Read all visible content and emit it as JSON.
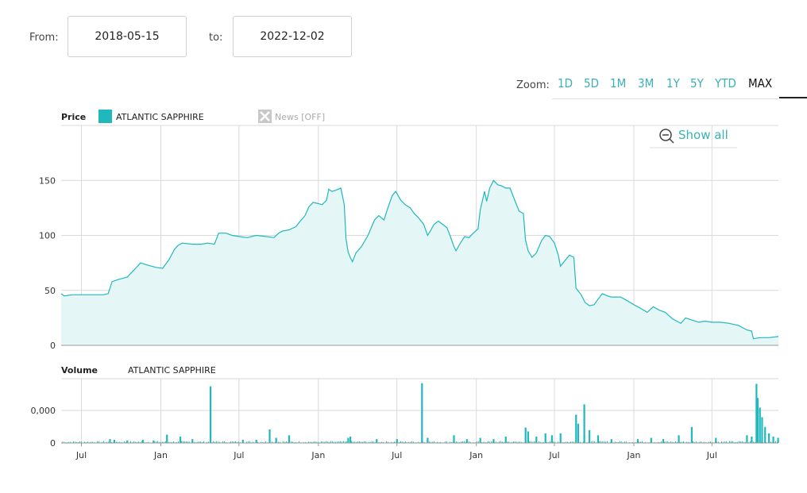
{
  "range": {
    "from_label": "From:",
    "from_value": "2018-05-15",
    "to_label": "to:",
    "to_value": "2022-12-02"
  },
  "zoom": {
    "label": "Zoom:",
    "options": [
      "1D",
      "5D",
      "1M",
      "3M",
      "1Y",
      "5Y",
      "YTD",
      "MAX"
    ],
    "selected": "MAX"
  },
  "price_panel": {
    "title": "Price",
    "series_name": "ATLANTIC SAPPHIRE",
    "news_toggle": "News [OFF]",
    "show_all": "Show all"
  },
  "volume_panel": {
    "title": "Volume",
    "series_name": "ATLANTIC SAPPHIRE"
  },
  "colors": {
    "series": "#20b8bc",
    "fill": "#e4f6f6",
    "grid": "#d9d9d9",
    "accent_text": "#3ab1b5"
  },
  "chart_data": [
    {
      "type": "area",
      "title": "Price",
      "legend": [
        "ATLANTIC SAPPHIRE"
      ],
      "x_range": [
        "2018-05-15",
        "2022-12-02"
      ],
      "x_ticks": [
        "Jul",
        "Jan",
        "Jul",
        "Jan",
        "Jul",
        "Jan",
        "Jul",
        "Jan",
        "Jul"
      ],
      "y_ticks": [
        0,
        50,
        100,
        150
      ],
      "ylim": [
        0,
        200
      ],
      "grid": true,
      "series": [
        {
          "name": "ATLANTIC SAPPHIRE",
          "points": [
            [
              "2018-05-15",
              47
            ],
            [
              "2018-05-22",
              45
            ],
            [
              "2018-06-10",
              46
            ],
            [
              "2018-07-15",
              46
            ],
            [
              "2018-08-20",
              46
            ],
            [
              "2018-09-01",
              47
            ],
            [
              "2018-09-10",
              58
            ],
            [
              "2018-09-25",
              60
            ],
            [
              "2018-10-15",
              62
            ],
            [
              "2018-11-01",
              69
            ],
            [
              "2018-11-15",
              75
            ],
            [
              "2018-12-01",
              73
            ],
            [
              "2018-12-20",
              71
            ],
            [
              "2019-01-05",
              70
            ],
            [
              "2019-01-20",
              78
            ],
            [
              "2019-02-01",
              87
            ],
            [
              "2019-02-10",
              91
            ],
            [
              "2019-02-20",
              93
            ],
            [
              "2019-03-15",
              92
            ],
            [
              "2019-04-05",
              92
            ],
            [
              "2019-04-20",
              93
            ],
            [
              "2019-05-05",
              92
            ],
            [
              "2019-05-15",
              102
            ],
            [
              "2019-06-01",
              102
            ],
            [
              "2019-06-15",
              100
            ],
            [
              "2019-07-01",
              99
            ],
            [
              "2019-07-20",
              98
            ],
            [
              "2019-08-10",
              100
            ],
            [
              "2019-09-01",
              99
            ],
            [
              "2019-09-20",
              98
            ],
            [
              "2019-10-01",
              102
            ],
            [
              "2019-10-10",
              104
            ],
            [
              "2019-10-25",
              105
            ],
            [
              "2019-11-10",
              108
            ],
            [
              "2019-11-20",
              113
            ],
            [
              "2019-12-01",
              118
            ],
            [
              "2019-12-10",
              126
            ],
            [
              "2019-12-20",
              130
            ],
            [
              "2020-01-10",
              128
            ],
            [
              "2020-01-20",
              132
            ],
            [
              "2020-01-25",
              142
            ],
            [
              "2020-02-01",
              140
            ],
            [
              "2020-02-10",
              141
            ],
            [
              "2020-02-22",
              143
            ],
            [
              "2020-03-01",
              128
            ],
            [
              "2020-03-05",
              97
            ],
            [
              "2020-03-10",
              85
            ],
            [
              "2020-03-15",
              80
            ],
            [
              "2020-03-20",
              76
            ],
            [
              "2020-03-28",
              84
            ],
            [
              "2020-04-10",
              90
            ],
            [
              "2020-04-25",
              100
            ],
            [
              "2020-05-10",
              114
            ],
            [
              "2020-05-20",
              118
            ],
            [
              "2020-06-01",
              114
            ],
            [
              "2020-06-10",
              125
            ],
            [
              "2020-06-20",
              136
            ],
            [
              "2020-06-28",
              140
            ],
            [
              "2020-07-10",
              132
            ],
            [
              "2020-07-20",
              128
            ],
            [
              "2020-08-01",
              125
            ],
            [
              "2020-08-10",
              120
            ],
            [
              "2020-08-20",
              116
            ],
            [
              "2020-09-01",
              110
            ],
            [
              "2020-09-10",
              100
            ],
            [
              "2020-09-15",
              103
            ],
            [
              "2020-09-25",
              110
            ],
            [
              "2020-10-05",
              113
            ],
            [
              "2020-10-15",
              110
            ],
            [
              "2020-10-25",
              107
            ],
            [
              "2020-11-01",
              100
            ],
            [
              "2020-11-10",
              90
            ],
            [
              "2020-11-15",
              86
            ],
            [
              "2020-11-25",
              93
            ],
            [
              "2020-12-05",
              99
            ],
            [
              "2020-12-15",
              98
            ],
            [
              "2020-12-25",
              102
            ],
            [
              "2021-01-05",
              106
            ],
            [
              "2021-01-10",
              123
            ],
            [
              "2021-01-20",
              140
            ],
            [
              "2021-01-25",
              131
            ],
            [
              "2021-02-01",
              143
            ],
            [
              "2021-02-10",
              150
            ],
            [
              "2021-02-20",
              146
            ],
            [
              "2021-03-01",
              145
            ],
            [
              "2021-03-10",
              143
            ],
            [
              "2021-03-20",
              143
            ],
            [
              "2021-04-01",
              131
            ],
            [
              "2021-04-10",
              122
            ],
            [
              "2021-04-20",
              120
            ],
            [
              "2021-04-25",
              96
            ],
            [
              "2021-05-01",
              86
            ],
            [
              "2021-05-10",
              80
            ],
            [
              "2021-05-20",
              84
            ],
            [
              "2021-06-01",
              95
            ],
            [
              "2021-06-10",
              100
            ],
            [
              "2021-06-20",
              99
            ],
            [
              "2021-07-01",
              93
            ],
            [
              "2021-07-10",
              82
            ],
            [
              "2021-07-15",
              72
            ],
            [
              "2021-07-25",
              77
            ],
            [
              "2021-08-05",
              82
            ],
            [
              "2021-08-15",
              80
            ],
            [
              "2021-08-20",
              52
            ],
            [
              "2021-09-01",
              46
            ],
            [
              "2021-09-10",
              39
            ],
            [
              "2021-09-20",
              36
            ],
            [
              "2021-10-01",
              37
            ],
            [
              "2021-10-10",
              42
            ],
            [
              "2021-10-20",
              47
            ],
            [
              "2021-11-01",
              45
            ],
            [
              "2021-11-10",
              44
            ],
            [
              "2021-12-01",
              44
            ],
            [
              "2021-12-15",
              41
            ],
            [
              "2022-01-01",
              37
            ],
            [
              "2022-01-15",
              34
            ],
            [
              "2022-02-01",
              30
            ],
            [
              "2022-02-15",
              35
            ],
            [
              "2022-03-01",
              32
            ],
            [
              "2022-03-15",
              30
            ],
            [
              "2022-04-01",
              24
            ],
            [
              "2022-04-20",
              20
            ],
            [
              "2022-05-01",
              25
            ],
            [
              "2022-05-15",
              23
            ],
            [
              "2022-06-01",
              21
            ],
            [
              "2022-06-15",
              22
            ],
            [
              "2022-07-01",
              21
            ],
            [
              "2022-07-20",
              21
            ],
            [
              "2022-08-10",
              20
            ],
            [
              "2022-09-01",
              18
            ],
            [
              "2022-09-20",
              14
            ],
            [
              "2022-10-01",
              13
            ],
            [
              "2022-10-05",
              6
            ],
            [
              "2022-10-20",
              7
            ],
            [
              "2022-11-10",
              7
            ],
            [
              "2022-12-02",
              8
            ]
          ]
        }
      ]
    },
    {
      "type": "bar",
      "title": "Volume",
      "legend": [
        "ATLANTIC SAPPHIRE"
      ],
      "x_range": [
        "2018-05-15",
        "2022-12-02"
      ],
      "x_ticks": [
        "Jul",
        "Jan",
        "Jul",
        "Jan",
        "Jul",
        "Jan",
        "Jul",
        "Jan",
        "Jul"
      ],
      "y_tick_labels": [
        "0",
        "0,000"
      ],
      "ylim": [
        0,
        2000000
      ],
      "grid": true,
      "baseline_level": 0.02,
      "spikes": [
        [
          "2018-09-05",
          0.06
        ],
        [
          "2018-09-15",
          0.05
        ],
        [
          "2018-10-15",
          0.04
        ],
        [
          "2018-11-20",
          0.05
        ],
        [
          "2018-12-15",
          0.04
        ],
        [
          "2019-01-15",
          0.13
        ],
        [
          "2019-02-15",
          0.1
        ],
        [
          "2019-03-15",
          0.06
        ],
        [
          "2019-04-26",
          0.88
        ],
        [
          "2019-07-10",
          0.05
        ],
        [
          "2019-08-10",
          0.05
        ],
        [
          "2019-09-10",
          0.21
        ],
        [
          "2019-09-25",
          0.08
        ],
        [
          "2019-10-25",
          0.12
        ],
        [
          "2020-03-10",
          0.08
        ],
        [
          "2020-03-15",
          0.1
        ],
        [
          "2020-05-15",
          0.06
        ],
        [
          "2020-07-01",
          0.06
        ],
        [
          "2020-08-28",
          0.93
        ],
        [
          "2020-09-10",
          0.08
        ],
        [
          "2020-11-10",
          0.12
        ],
        [
          "2020-12-10",
          0.06
        ],
        [
          "2021-01-10",
          0.08
        ],
        [
          "2021-02-10",
          0.06
        ],
        [
          "2021-03-10",
          0.1
        ],
        [
          "2021-04-25",
          0.24
        ],
        [
          "2021-05-01",
          0.18
        ],
        [
          "2021-05-20",
          0.1
        ],
        [
          "2021-06-10",
          0.15
        ],
        [
          "2021-06-25",
          0.12
        ],
        [
          "2021-07-15",
          0.15
        ],
        [
          "2021-08-20",
          0.44
        ],
        [
          "2021-08-25",
          0.3
        ],
        [
          "2021-09-08",
          0.6
        ],
        [
          "2021-09-20",
          0.2
        ],
        [
          "2021-10-10",
          0.12
        ],
        [
          "2021-11-10",
          0.06
        ],
        [
          "2022-01-10",
          0.06
        ],
        [
          "2022-02-10",
          0.08
        ],
        [
          "2022-03-10",
          0.06
        ],
        [
          "2022-04-15",
          0.12
        ],
        [
          "2022-05-15",
          0.25
        ],
        [
          "2022-07-10",
          0.08
        ],
        [
          "2022-09-20",
          0.12
        ],
        [
          "2022-10-01",
          0.1
        ],
        [
          "2022-10-12",
          0.92
        ],
        [
          "2022-10-15",
          0.7
        ],
        [
          "2022-10-20",
          0.55
        ],
        [
          "2022-10-25",
          0.4
        ],
        [
          "2022-11-01",
          0.25
        ],
        [
          "2022-11-10",
          0.15
        ],
        [
          "2022-11-20",
          0.1
        ],
        [
          "2022-12-01",
          0.08
        ]
      ]
    }
  ]
}
